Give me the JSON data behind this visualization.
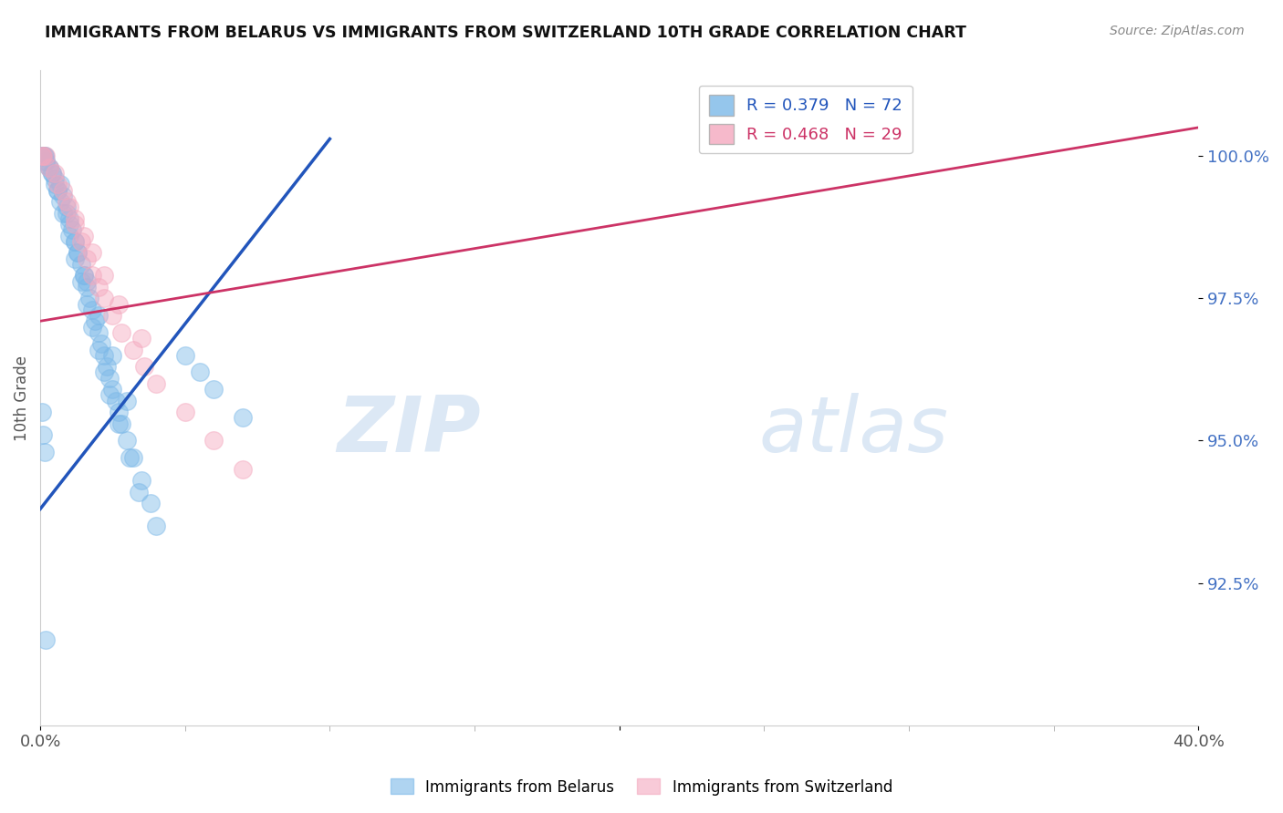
{
  "title": "IMMIGRANTS FROM BELARUS VS IMMIGRANTS FROM SWITZERLAND 10TH GRADE CORRELATION CHART",
  "source": "Source: ZipAtlas.com",
  "ylabel": "10th Grade",
  "yticks": [
    92.5,
    95.0,
    97.5,
    100.0
  ],
  "ytick_labels": [
    "92.5%",
    "95.0%",
    "97.5%",
    "100.0%"
  ],
  "xlim": [
    0.0,
    40.0
  ],
  "ylim": [
    90.0,
    101.5
  ],
  "R_blue": 0.379,
  "N_blue": 72,
  "R_pink": 0.468,
  "N_pink": 29,
  "legend_label_blue": "Immigrants from Belarus",
  "legend_label_pink": "Immigrants from Switzerland",
  "blue_color": "#7bb8e8",
  "pink_color": "#f4a8be",
  "blue_line_color": "#2255bb",
  "pink_line_color": "#cc3366",
  "background_color": "#ffffff",
  "watermark_color": "#dce8f5",
  "blue_scatter_x": [
    0.15,
    0.3,
    0.5,
    0.7,
    0.8,
    0.9,
    1.0,
    1.1,
    1.2,
    1.3,
    1.4,
    1.5,
    1.6,
    1.7,
    1.8,
    1.9,
    2.0,
    2.1,
    2.2,
    2.3,
    2.4,
    2.5,
    2.6,
    2.7,
    2.8,
    3.0,
    3.2,
    3.5,
    3.8,
    4.0,
    0.1,
    0.2,
    0.4,
    0.6,
    0.8,
    1.0,
    1.2,
    1.4,
    1.6,
    1.8,
    2.0,
    2.2,
    2.4,
    2.7,
    3.1,
    3.4,
    0.05,
    0.15,
    0.3,
    0.5,
    0.7,
    1.0,
    1.3,
    1.6,
    2.0,
    2.5,
    3.0,
    0.1,
    0.2,
    0.4,
    0.6,
    0.9,
    1.2,
    1.5,
    5.0,
    5.5,
    6.0,
    7.0,
    0.05,
    0.1,
    0.15,
    0.2
  ],
  "blue_scatter_y": [
    100.0,
    99.8,
    99.6,
    99.5,
    99.3,
    99.1,
    98.9,
    98.7,
    98.5,
    98.3,
    98.1,
    97.9,
    97.7,
    97.5,
    97.3,
    97.1,
    96.9,
    96.7,
    96.5,
    96.3,
    96.1,
    95.9,
    95.7,
    95.5,
    95.3,
    95.0,
    94.7,
    94.3,
    93.9,
    93.5,
    100.0,
    99.9,
    99.7,
    99.4,
    99.0,
    98.6,
    98.2,
    97.8,
    97.4,
    97.0,
    96.6,
    96.2,
    95.8,
    95.3,
    94.7,
    94.1,
    100.0,
    100.0,
    99.8,
    99.5,
    99.2,
    98.8,
    98.3,
    97.8,
    97.2,
    96.5,
    95.7,
    100.0,
    99.9,
    99.7,
    99.4,
    99.0,
    98.5,
    97.9,
    96.5,
    96.2,
    95.9,
    95.4,
    95.5,
    95.1,
    94.8,
    91.5
  ],
  "pink_scatter_x": [
    0.2,
    0.5,
    0.8,
    1.0,
    1.2,
    1.4,
    1.6,
    1.8,
    2.0,
    2.2,
    2.5,
    2.8,
    3.2,
    3.6,
    4.0,
    5.0,
    6.0,
    7.0,
    0.1,
    0.3,
    0.6,
    0.9,
    1.2,
    1.5,
    1.8,
    2.2,
    2.7,
    3.5,
    0.05
  ],
  "pink_scatter_y": [
    100.0,
    99.7,
    99.4,
    99.1,
    98.8,
    98.5,
    98.2,
    97.9,
    97.7,
    97.5,
    97.2,
    96.9,
    96.6,
    96.3,
    96.0,
    95.5,
    95.0,
    94.5,
    100.0,
    99.8,
    99.5,
    99.2,
    98.9,
    98.6,
    98.3,
    97.9,
    97.4,
    96.8,
    100.0
  ],
  "blue_line_x0": 0.0,
  "blue_line_y0": 93.8,
  "blue_line_x1": 10.0,
  "blue_line_y1": 100.3,
  "pink_line_x0": 0.0,
  "pink_line_y0": 97.1,
  "pink_line_x1": 40.0,
  "pink_line_y1": 100.5
}
